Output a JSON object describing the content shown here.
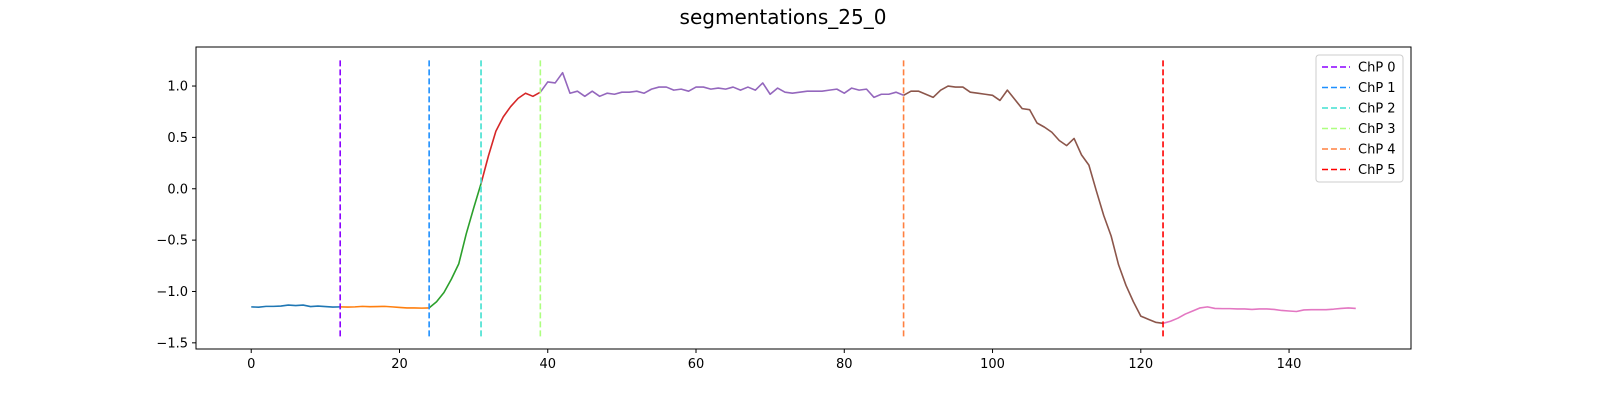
{
  "chart_data": {
    "type": "line",
    "title": "segmentations_25_0",
    "xlabel": "",
    "ylabel": "",
    "xlim": [
      -7.45,
      156.45
    ],
    "ylim": [
      -1.56,
      1.38
    ],
    "xticks": [
      0,
      20,
      40,
      60,
      80,
      100,
      120,
      140
    ],
    "xtick_labels": [
      "0",
      "20",
      "40",
      "60",
      "80",
      "100",
      "120",
      "140"
    ],
    "yticks": [
      -1.5,
      -1.0,
      -0.5,
      0.0,
      0.5,
      1.0
    ],
    "ytick_labels": [
      "−1.5",
      "−1.0",
      "−0.5",
      "0.0",
      "0.5",
      "1.0"
    ],
    "grid": false,
    "legend_position": "top-right",
    "series": [
      {
        "color": "#1f77b4",
        "x": [
          0,
          1,
          2,
          3,
          4,
          5,
          6,
          7,
          8,
          9,
          10,
          11,
          12
        ],
        "y": [
          -1.15,
          -1.153,
          -1.145,
          -1.145,
          -1.142,
          -1.132,
          -1.137,
          -1.132,
          -1.147,
          -1.142,
          -1.147,
          -1.152,
          -1.15
        ]
      },
      {
        "color": "#ff7f0e",
        "x": [
          12,
          13,
          14,
          15,
          16,
          17,
          18,
          19,
          20,
          21,
          22,
          23,
          24
        ],
        "y": [
          -1.15,
          -1.152,
          -1.15,
          -1.145,
          -1.148,
          -1.147,
          -1.145,
          -1.15,
          -1.155,
          -1.16,
          -1.16,
          -1.162,
          -1.16
        ]
      },
      {
        "color": "#2ca02c",
        "x": [
          24,
          25,
          26,
          27,
          28,
          29,
          30,
          31
        ],
        "y": [
          -1.16,
          -1.1,
          -1.01,
          -0.88,
          -0.73,
          -0.44,
          -0.19,
          0.05
        ]
      },
      {
        "color": "#d62728",
        "x": [
          31,
          32,
          33,
          34,
          35,
          36,
          37,
          38,
          39
        ],
        "y": [
          0.05,
          0.32,
          0.56,
          0.7,
          0.8,
          0.88,
          0.93,
          0.9,
          0.94
        ]
      },
      {
        "color": "#9467bd",
        "x": [
          39,
          40,
          41,
          42,
          43,
          44,
          45,
          46,
          47,
          48,
          49,
          50,
          51,
          52,
          53,
          54,
          55,
          56,
          57,
          58,
          59,
          60,
          61,
          62,
          63,
          64,
          65,
          66,
          67,
          68,
          69,
          70,
          71,
          72,
          73,
          74,
          75,
          76,
          77,
          78,
          79,
          80,
          81,
          82,
          83,
          84,
          85,
          86,
          87,
          88
        ],
        "y": [
          0.94,
          1.04,
          1.03,
          1.13,
          0.93,
          0.95,
          0.9,
          0.95,
          0.9,
          0.93,
          0.92,
          0.94,
          0.94,
          0.95,
          0.93,
          0.97,
          0.99,
          0.99,
          0.96,
          0.97,
          0.95,
          0.99,
          0.99,
          0.97,
          0.98,
          0.97,
          0.99,
          0.96,
          0.99,
          0.96,
          1.03,
          0.92,
          0.98,
          0.94,
          0.93,
          0.94,
          0.95,
          0.95,
          0.95,
          0.96,
          0.97,
          0.93,
          0.98,
          0.96,
          0.97,
          0.89,
          0.92,
          0.92,
          0.94,
          0.91
        ]
      },
      {
        "color": "#8c564b",
        "x": [
          88,
          89,
          90,
          91,
          92,
          93,
          94,
          95,
          96,
          97,
          98,
          99,
          100,
          101,
          102,
          103,
          104,
          105,
          106,
          107,
          108,
          109,
          110,
          111,
          112,
          113,
          114,
          115,
          116,
          117,
          118,
          119,
          120,
          121,
          122,
          123
        ],
        "y": [
          0.91,
          0.95,
          0.95,
          0.92,
          0.89,
          0.96,
          1.0,
          0.99,
          0.99,
          0.94,
          0.93,
          0.92,
          0.91,
          0.86,
          0.96,
          0.87,
          0.78,
          0.77,
          0.64,
          0.6,
          0.55,
          0.47,
          0.42,
          0.49,
          0.33,
          0.23,
          -0.02,
          -0.26,
          -0.46,
          -0.74,
          -0.94,
          -1.1,
          -1.24,
          -1.27,
          -1.3,
          -1.31
        ]
      },
      {
        "color": "#e377c2",
        "x": [
          123,
          124,
          125,
          126,
          127,
          128,
          129,
          130,
          131,
          132,
          133,
          134,
          135,
          136,
          137,
          138,
          139,
          140,
          141,
          142,
          143,
          144,
          145,
          146,
          147,
          148,
          149
        ],
        "y": [
          -1.31,
          -1.29,
          -1.26,
          -1.22,
          -1.19,
          -1.16,
          -1.15,
          -1.165,
          -1.167,
          -1.167,
          -1.17,
          -1.17,
          -1.175,
          -1.17,
          -1.17,
          -1.175,
          -1.185,
          -1.19,
          -1.195,
          -1.18,
          -1.177,
          -1.177,
          -1.177,
          -1.172,
          -1.165,
          -1.16,
          -1.165
        ]
      }
    ],
    "changepoints": [
      {
        "name": "ChP 0",
        "x": 12,
        "color": "#8b00ff",
        "dash": "long"
      },
      {
        "name": "ChP 1",
        "x": 24,
        "color": "#1e90ff",
        "dash": "long"
      },
      {
        "name": "ChP 2",
        "x": 31,
        "color": "#40e0d0",
        "dash": "short"
      },
      {
        "name": "ChP 3",
        "x": 39,
        "color": "#adff7f",
        "dash": "short"
      },
      {
        "name": "ChP 4",
        "x": 88,
        "color": "#ff8040",
        "dash": "short"
      },
      {
        "name": "ChP 5",
        "x": 123,
        "color": "#ff0000",
        "dash": "long"
      }
    ],
    "changepoint_ymin": -1.45,
    "changepoint_ymax": 1.25
  }
}
